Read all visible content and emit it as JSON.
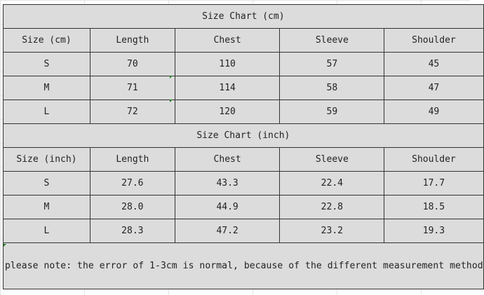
{
  "cm_table": {
    "title": "Size Chart (cm)",
    "headers": [
      "Size (cm)",
      "Length",
      "Chest",
      "Sleeve",
      "Shoulder"
    ],
    "rows": [
      [
        "S",
        "70",
        "110",
        "57",
        "45"
      ],
      [
        "M",
        "71",
        "114",
        "58",
        "47"
      ],
      [
        "L",
        "72",
        "120",
        "59",
        "49"
      ]
    ]
  },
  "inch_table": {
    "title": "Size Chart (inch)",
    "headers": [
      "Size (inch)",
      "Length",
      "Chest",
      "Sleeve",
      "Shoulder"
    ],
    "rows": [
      [
        "S",
        "27.6",
        "43.3",
        "22.4",
        "17.7"
      ],
      [
        "M",
        "28.0",
        "44.9",
        "22.8",
        "18.5"
      ],
      [
        "L",
        "28.3",
        "47.2",
        "23.2",
        "19.3"
      ]
    ]
  },
  "note": "please note: the error of 1-3cm is normal, because of the different measurement method"
}
